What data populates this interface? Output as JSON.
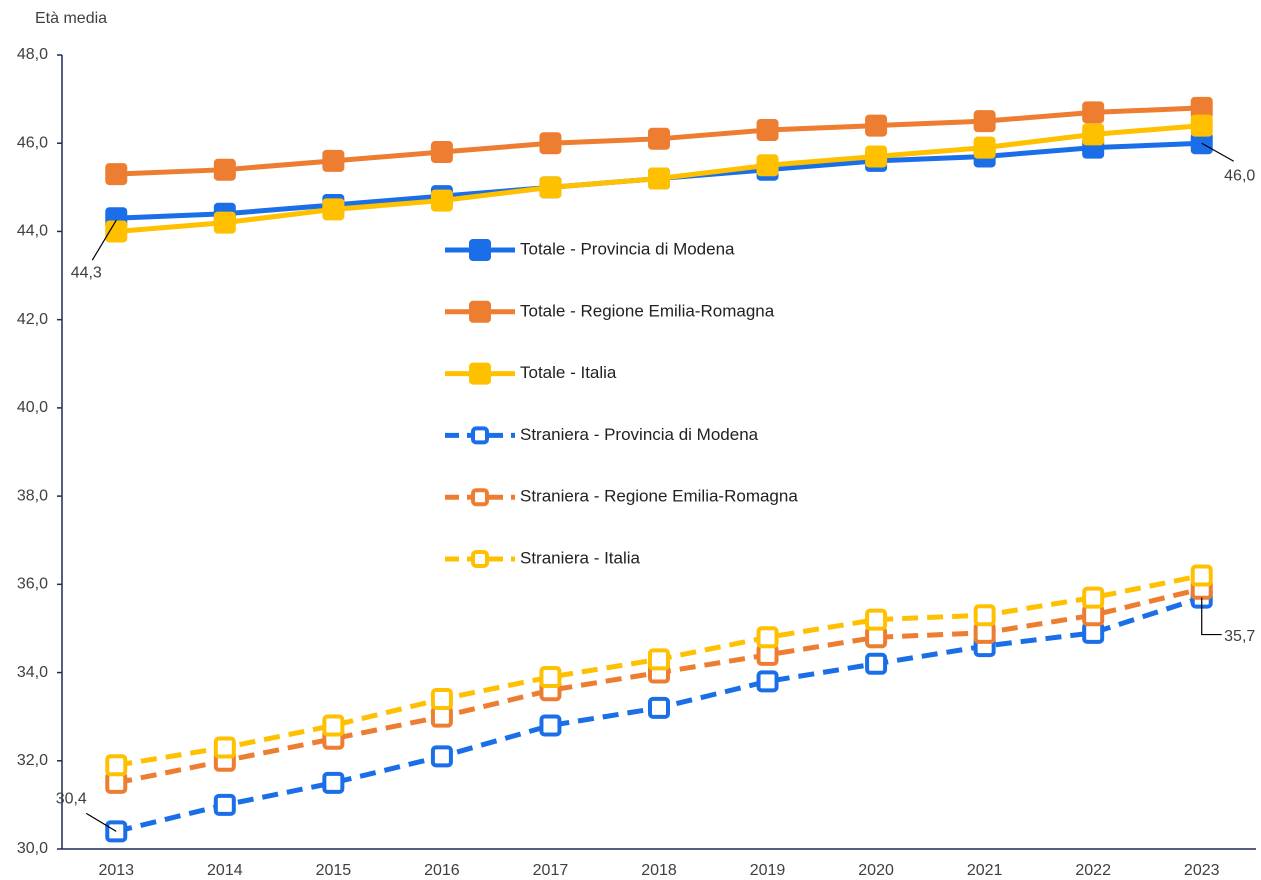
{
  "chart_data": {
    "type": "line",
    "y_label": "Età media",
    "categories": [
      "2013",
      "2014",
      "2015",
      "2016",
      "2017",
      "2018",
      "2019",
      "2020",
      "2021",
      "2022",
      "2023"
    ],
    "ylim": [
      30,
      48
    ],
    "yticks": [
      {
        "value": 30,
        "label": "30,0"
      },
      {
        "value": 32,
        "label": "32,0"
      },
      {
        "value": 34,
        "label": "34,0"
      },
      {
        "value": 36,
        "label": "36,0"
      },
      {
        "value": 38,
        "label": "38,0"
      },
      {
        "value": 40,
        "label": "40,0"
      },
      {
        "value": 42,
        "label": "42,0"
      },
      {
        "value": 44,
        "label": "44,0"
      },
      {
        "value": 46,
        "label": "46,0"
      },
      {
        "value": 48,
        "label": "48,0"
      }
    ],
    "series": [
      {
        "name": "Totale - Provincia di Modena",
        "color": "#1a6ee8",
        "dashed": false,
        "values": [
          44.3,
          44.4,
          44.6,
          44.8,
          45.0,
          45.2,
          45.4,
          45.6,
          45.7,
          45.9,
          46.0
        ],
        "value_labels": [
          "44,3",
          null,
          null,
          null,
          null,
          null,
          null,
          null,
          null,
          null,
          "46,0"
        ]
      },
      {
        "name": "Totale - Regione Emilia-Romagna",
        "color": "#ed7d31",
        "dashed": false,
        "values": [
          45.3,
          45.4,
          45.6,
          45.8,
          46.0,
          46.1,
          46.3,
          46.4,
          46.5,
          46.7,
          46.8
        ]
      },
      {
        "name": "Totale - Italia",
        "color": "#ffc000",
        "dashed": false,
        "values": [
          44.0,
          44.2,
          44.5,
          44.7,
          45.0,
          45.2,
          45.5,
          45.7,
          45.9,
          46.2,
          46.4
        ]
      },
      {
        "name": "Straniera - Provincia di Modena",
        "color": "#1a6ee8",
        "dashed": true,
        "values": [
          30.4,
          31.0,
          31.5,
          32.1,
          32.8,
          33.2,
          33.8,
          34.2,
          34.6,
          34.9,
          35.7
        ],
        "value_labels": [
          "30,4",
          null,
          null,
          null,
          null,
          null,
          null,
          null,
          null,
          null,
          "35,7"
        ]
      },
      {
        "name": "Straniera - Regione Emilia-Romagna",
        "color": "#ed7d31",
        "dashed": true,
        "values": [
          31.5,
          32.0,
          32.5,
          33.0,
          33.6,
          34.0,
          34.4,
          34.8,
          34.9,
          35.3,
          35.9
        ]
      },
      {
        "name": "Straniera - Italia",
        "color": "#ffc000",
        "dashed": true,
        "values": [
          31.9,
          32.3,
          32.8,
          33.4,
          33.9,
          34.3,
          34.8,
          35.2,
          35.3,
          35.7,
          36.2
        ]
      }
    ]
  }
}
